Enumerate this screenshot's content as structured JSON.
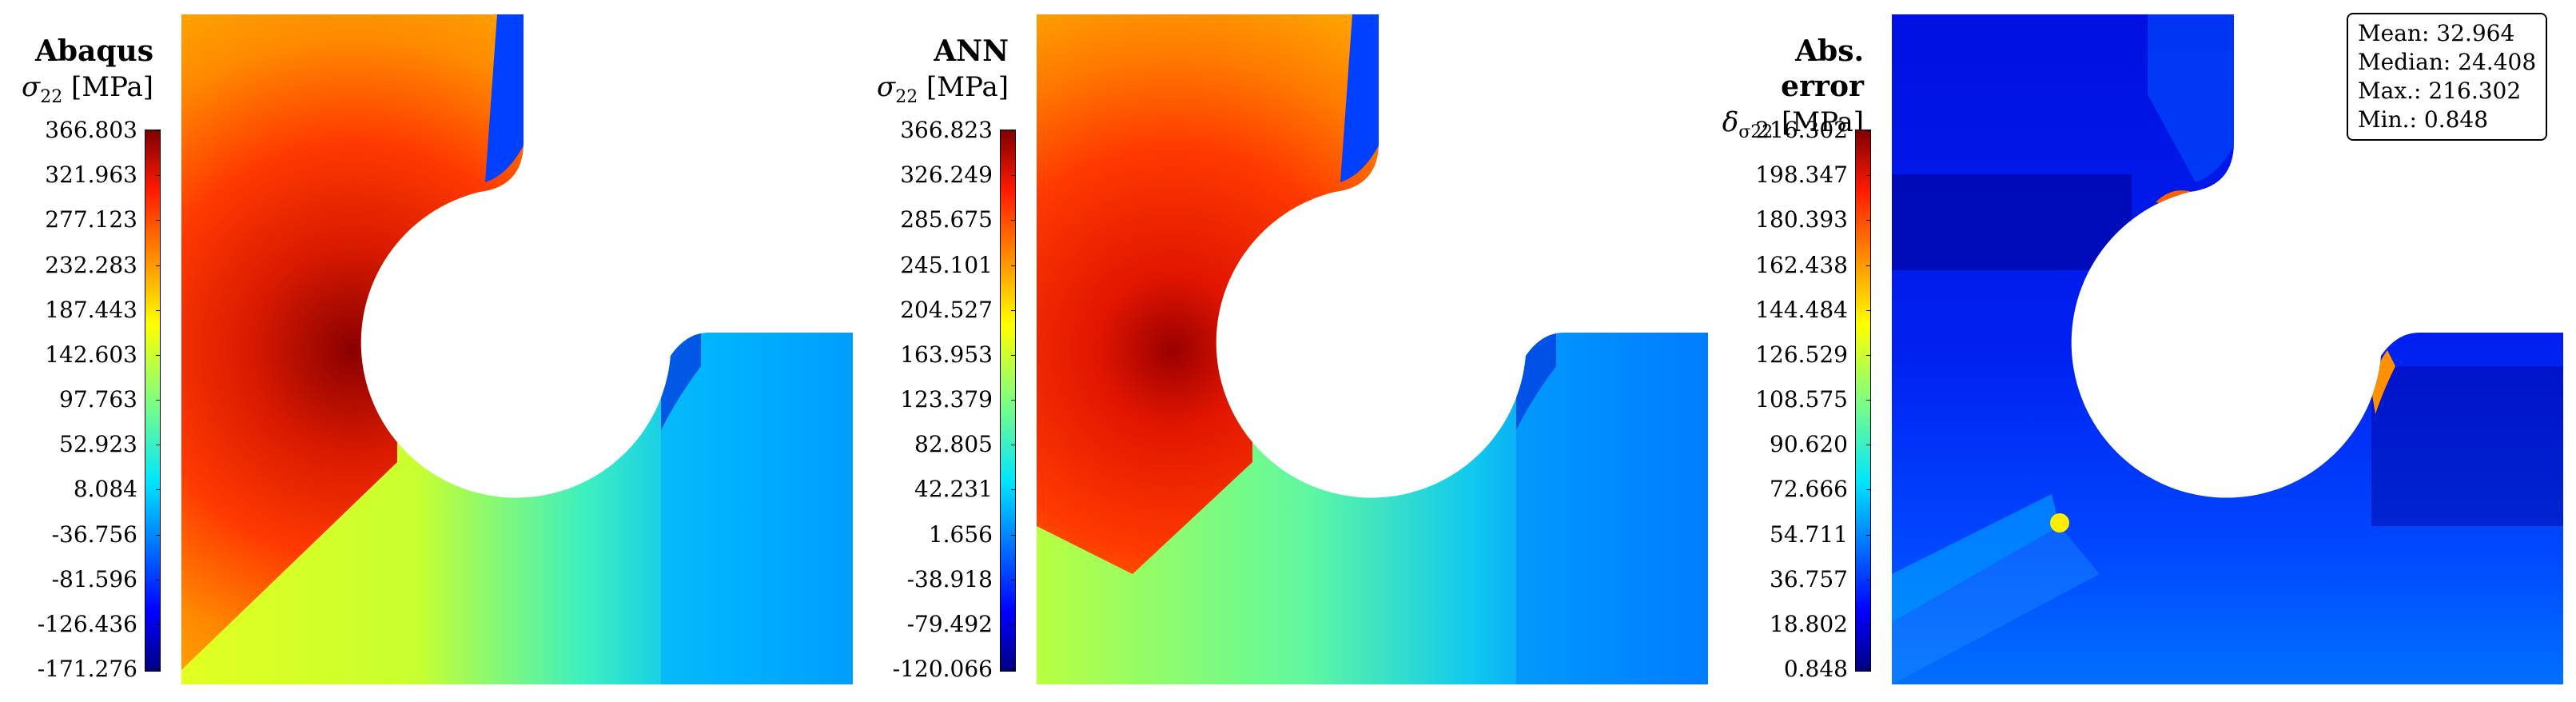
{
  "chart_data": [
    {
      "type": "heatmap",
      "title": "Abaqus",
      "quantity_symbol": "σ",
      "quantity_subscript": "22",
      "unit": "[MPa]",
      "colorbar_ticks": [
        "366.803",
        "321.963",
        "277.123",
        "232.283",
        "187.443",
        "142.603",
        "97.763",
        "52.923",
        "8.084",
        "-36.756",
        "-81.596",
        "-126.436",
        "-171.276"
      ],
      "range": [
        -171.276,
        366.803
      ],
      "colormap": "jet"
    },
    {
      "type": "heatmap",
      "title": "ANN",
      "quantity_symbol": "σ",
      "quantity_subscript": "22",
      "unit": "[MPa]",
      "colorbar_ticks": [
        "366.823",
        "326.249",
        "285.675",
        "245.101",
        "204.527",
        "163.953",
        "123.379",
        "82.805",
        "42.231",
        "1.656",
        "-38.918",
        "-79.492",
        "-120.066"
      ],
      "range": [
        -120.066,
        366.823
      ],
      "colormap": "jet"
    },
    {
      "type": "heatmap",
      "title": "Abs. error",
      "quantity_symbol": "δ",
      "quantity_subscript": "σ22",
      "unit": "[MPa]",
      "colorbar_ticks": [
        "216.302",
        "198.347",
        "180.393",
        "162.438",
        "144.484",
        "126.529",
        "108.575",
        "90.620",
        "72.666",
        "54.711",
        "36.757",
        "18.802",
        "0.848"
      ],
      "range": [
        0.848,
        216.302
      ],
      "colormap": "jet",
      "stats": [
        "Mean: 32.964",
        "Median: 24.408",
        "Max.: 216.302",
        "Min.: 0.848"
      ]
    }
  ]
}
